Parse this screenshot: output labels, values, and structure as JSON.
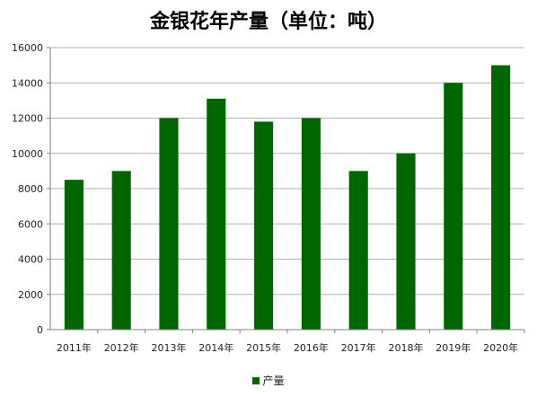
{
  "chart_data": {
    "type": "bar",
    "title": "金银花年产量（单位：吨）",
    "categories": [
      "2011年",
      "2012年",
      "2013年",
      "2014年",
      "2015年",
      "2016年",
      "2017年",
      "2018年",
      "2019年",
      "2020年"
    ],
    "series": [
      {
        "name": "产量",
        "values": [
          8500,
          9000,
          12000,
          13100,
          11800,
          12000,
          9000,
          10000,
          14000,
          15000
        ],
        "color": "#006600"
      }
    ],
    "ylim": [
      0,
      16000
    ],
    "yticks": [
      0,
      2000,
      4000,
      6000,
      8000,
      10000,
      12000,
      14000,
      16000
    ],
    "xlabel": "",
    "ylabel": "",
    "grid": true,
    "legend_position": "bottom",
    "colors": {
      "gridline": "#b0b0b0",
      "axis": "#808080"
    }
  }
}
